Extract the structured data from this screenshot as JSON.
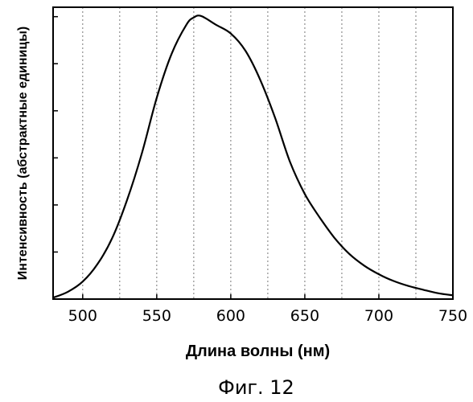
{
  "chart_data": {
    "type": "line",
    "title": "",
    "xlabel": "Длина волны (нм)",
    "ylabel": "Интенсивность (абстрактные единицы)",
    "xlim": [
      480,
      750
    ],
    "ylim": [
      0,
      1
    ],
    "x_ticks": [
      500,
      550,
      600,
      650,
      700,
      750
    ],
    "x_tick_labels": [
      "500",
      "550",
      "600",
      "650",
      "700",
      "750"
    ],
    "y_tick_count": 6,
    "grid": "vertical dotted lines every 25 nm",
    "y_axis_ticks_shown_without_labels": true,
    "series": [
      {
        "x": [
          480,
          490,
          500,
          510,
          520,
          530,
          540,
          550,
          560,
          570,
          575,
          580,
          590,
          600,
          610,
          620,
          630,
          640,
          650,
          660,
          670,
          680,
          690,
          700,
          710,
          720,
          730,
          740,
          750
        ],
        "values": [
          0.005,
          0.025,
          0.06,
          0.12,
          0.21,
          0.34,
          0.5,
          0.69,
          0.84,
          0.94,
          0.965,
          0.97,
          0.94,
          0.91,
          0.85,
          0.75,
          0.62,
          0.47,
          0.36,
          0.28,
          0.21,
          0.155,
          0.115,
          0.085,
          0.062,
          0.045,
          0.032,
          0.02,
          0.013
        ]
      }
    ]
  },
  "caption": "Фиг. 12"
}
